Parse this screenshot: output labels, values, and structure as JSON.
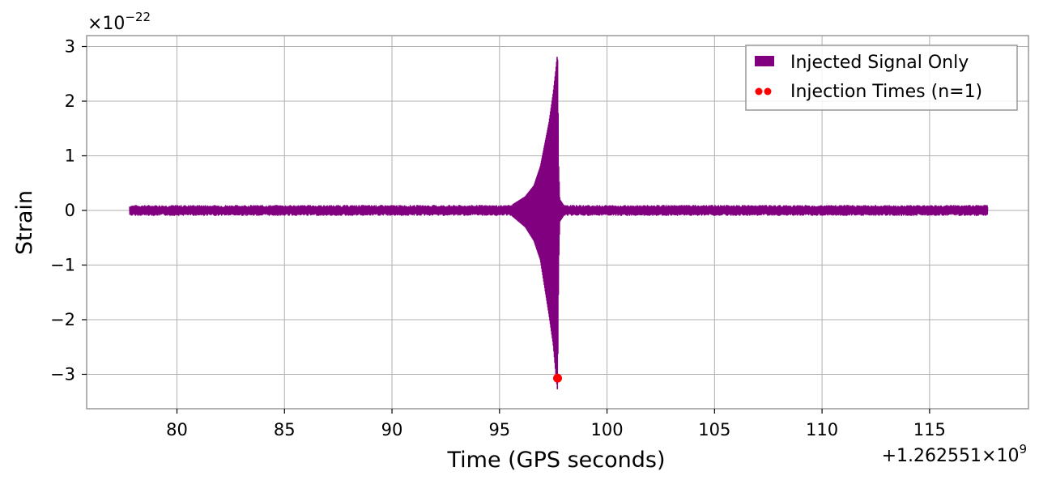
{
  "chart_data": {
    "type": "line",
    "xlabel": "Time (GPS seconds)",
    "ylabel": "Strain",
    "x_offset_text": "+1.262551×10",
    "x_offset_exp": "9",
    "y_scale_base": "×10",
    "y_scale_exp": "−22",
    "xlim": [
      75.8,
      119.6
    ],
    "ylim": [
      -3.63,
      3.2
    ],
    "x_ticks": [
      80,
      85,
      90,
      95,
      100,
      105,
      110,
      115
    ],
    "x_tick_labels": [
      "80",
      "85",
      "90",
      "95",
      "100",
      "105",
      "110",
      "115"
    ],
    "y_ticks": [
      -3,
      -2,
      -1,
      0,
      1,
      2,
      3
    ],
    "y_tick_labels": [
      "−3",
      "−2",
      "−1",
      "0",
      "1",
      "2",
      "3"
    ],
    "grid": true,
    "legend_position": "top-right",
    "series": [
      {
        "name": "Injected Signal Only",
        "color": "#800080",
        "kind": "line",
        "x_start": 77.8,
        "x_end": 117.7,
        "noise_band": 0.09,
        "envelope": {
          "x": [
            95.6,
            96.2,
            96.6,
            96.9,
            97.1,
            97.3,
            97.5,
            97.6,
            97.7,
            97.75,
            97.8,
            98.0
          ],
          "upper": [
            0.1,
            0.25,
            0.45,
            0.8,
            1.2,
            1.6,
            2.15,
            2.5,
            2.88,
            0.8,
            0.2,
            0.08
          ],
          "lower": [
            -0.1,
            -0.3,
            -0.55,
            -0.9,
            -1.4,
            -1.9,
            -2.45,
            -2.9,
            -3.3,
            -1.0,
            -0.2,
            -0.08
          ]
        }
      },
      {
        "name": "Injection Times (n=1)",
        "color": "#ff0000",
        "kind": "scatter",
        "points": [
          {
            "x": 97.7,
            "y": -3.07
          }
        ]
      }
    ]
  }
}
